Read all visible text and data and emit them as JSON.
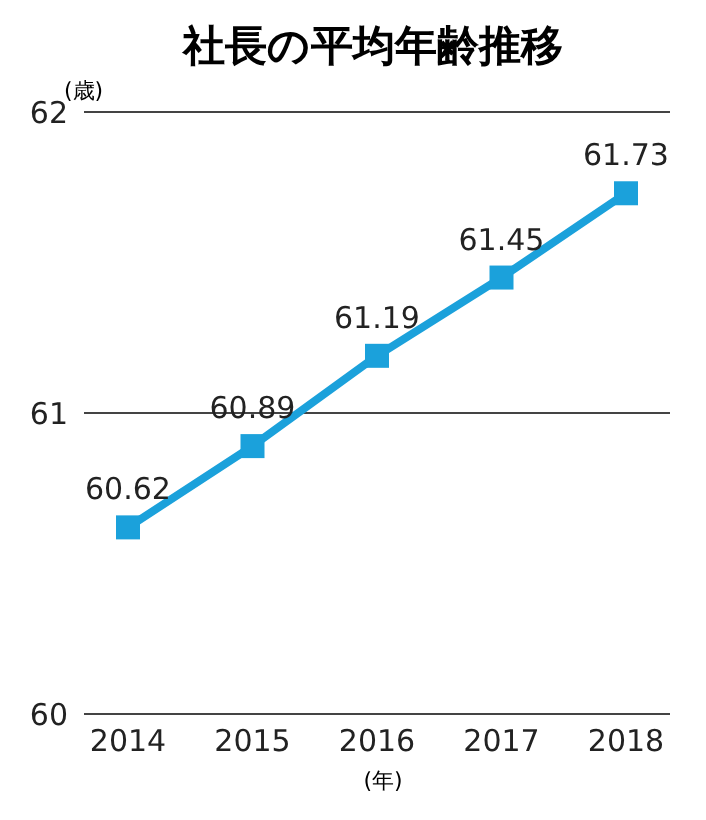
{
  "chart_data": {
    "type": "line",
    "title": "社長の平均年齢推移",
    "ylabel": "(歳)",
    "xlabel": "(年)",
    "categories": [
      "2014",
      "2015",
      "2016",
      "2017",
      "2018"
    ],
    "series": [
      {
        "color": "#1ba1db",
        "values": [
          60.62,
          60.89,
          61.19,
          61.45,
          61.73
        ]
      }
    ],
    "ylim": [
      60,
      62
    ],
    "yticks": [
      60,
      61,
      62
    ],
    "grid": "y",
    "marker": "square",
    "line_style": "solid",
    "data_labels": true,
    "legend": false
  }
}
